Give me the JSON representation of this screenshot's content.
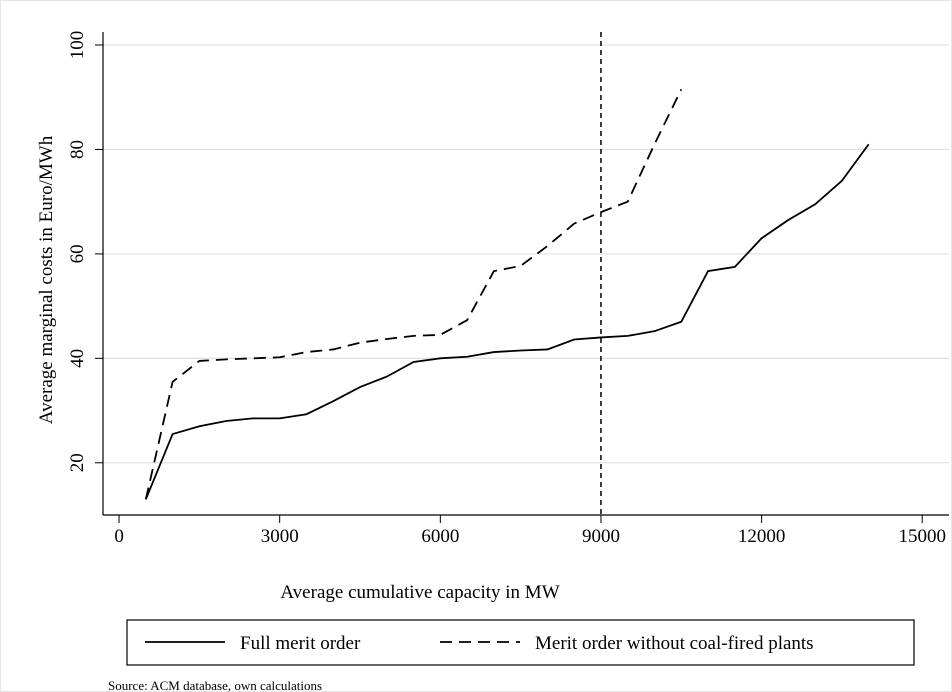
{
  "chart_data": {
    "type": "line",
    "x_label": "Average cumulative capacity in MW",
    "y_label": "Average marginal costs in Euro/MWh",
    "note": "Source: ACM database, own calculations",
    "x": [
      500,
      1000,
      1500,
      2000,
      2500,
      3000,
      3500,
      4000,
      4500,
      5000,
      5500,
      6000,
      6500,
      7000,
      7500,
      8000,
      8500,
      9000,
      9500,
      10000,
      10500,
      11000,
      11500,
      12000,
      12500,
      13000,
      13500,
      14000
    ],
    "series": [
      {
        "name": "Full merit order",
        "color": "#000000",
        "style": "solid",
        "values": [
          13,
          25.5,
          27,
          28,
          28.5,
          28.5,
          29.3,
          31.8,
          34.5,
          36.5,
          39.3,
          40,
          40.3,
          41.2,
          41.5,
          41.7,
          43.6,
          44,
          44.3,
          45.2,
          47,
          56.7,
          57.5,
          63,
          66.5,
          69.5,
          74,
          81
        ]
      },
      {
        "name": "Merit order without coal-fired plants",
        "color": "#000000",
        "style": "dashed",
        "values": [
          13,
          35.5,
          39.5,
          39.8,
          40,
          40.2,
          41.2,
          41.7,
          43,
          43.7,
          44.3,
          44.5,
          47.3,
          56.7,
          57.7,
          61.5,
          65.8,
          68,
          70,
          81,
          91.5,
          null,
          null,
          null,
          null,
          null,
          null,
          null
        ]
      }
    ],
    "vline": 9000,
    "xlim": [
      -300,
      15500
    ],
    "xticks": [
      0,
      3000,
      6000,
      9000,
      12000,
      15000
    ],
    "ylim": [
      10,
      100
    ],
    "yticks": [
      20,
      40,
      60,
      80,
      100
    ],
    "grid": true,
    "legend": "bottom"
  }
}
